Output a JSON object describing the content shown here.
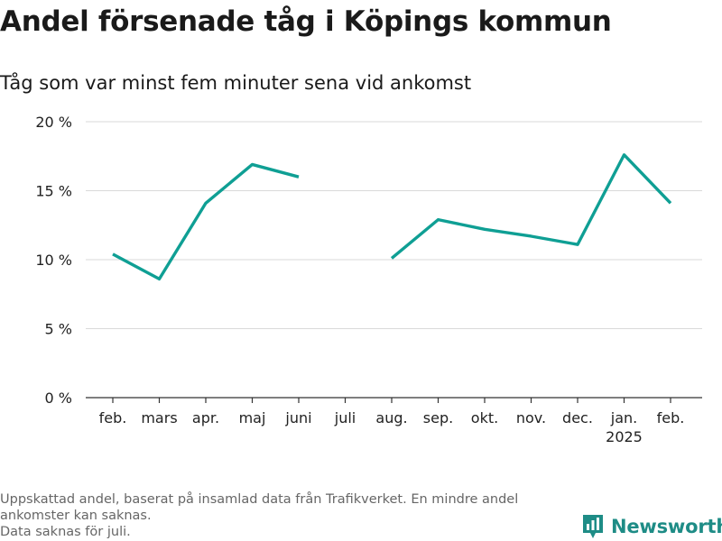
{
  "header": {
    "title": "Andel försenade tåg i Köpings kommun",
    "subtitle": "Tåg som var minst fem minuter sena vid ankomst"
  },
  "footer": {
    "notes": [
      "Uppskattad andel, baserat på insamlad data från Trafikverket. En mindre andel ankomster kan saknas.",
      "Data saknas för juli."
    ],
    "brand": "Newsworthy",
    "brand_icon": "bar-chart-logo-icon",
    "brand_color": "#1e8c86"
  },
  "chart_data": {
    "type": "line",
    "title": "Andel försenade tåg i Köpings kommun",
    "subtitle": "Tåg som var minst fem minuter sena vid ankomst",
    "categories": [
      "feb.",
      "mars",
      "apr.",
      "maj",
      "juni",
      "juli",
      "aug.",
      "sep.",
      "okt.",
      "nov.",
      "dec.",
      "jan.",
      "feb."
    ],
    "category_sublabels": [
      "",
      "",
      "",
      "",
      "",
      "",
      "",
      "",
      "",
      "",
      "",
      "2025",
      ""
    ],
    "series": [
      {
        "values": [
          10.4,
          8.6,
          14.1,
          16.9,
          16.0,
          null,
          10.1,
          12.9,
          12.2,
          11.7,
          11.1,
          17.6,
          14.1
        ],
        "color": "#0f9f94"
      }
    ],
    "ylim": [
      0,
      20
    ],
    "yticks": [
      0,
      5,
      10,
      15,
      20
    ],
    "ytick_labels": [
      "0 %",
      "5 %",
      "10 %",
      "15 %",
      "20 %"
    ],
    "xlabel": "",
    "ylabel": "",
    "grid": true
  }
}
